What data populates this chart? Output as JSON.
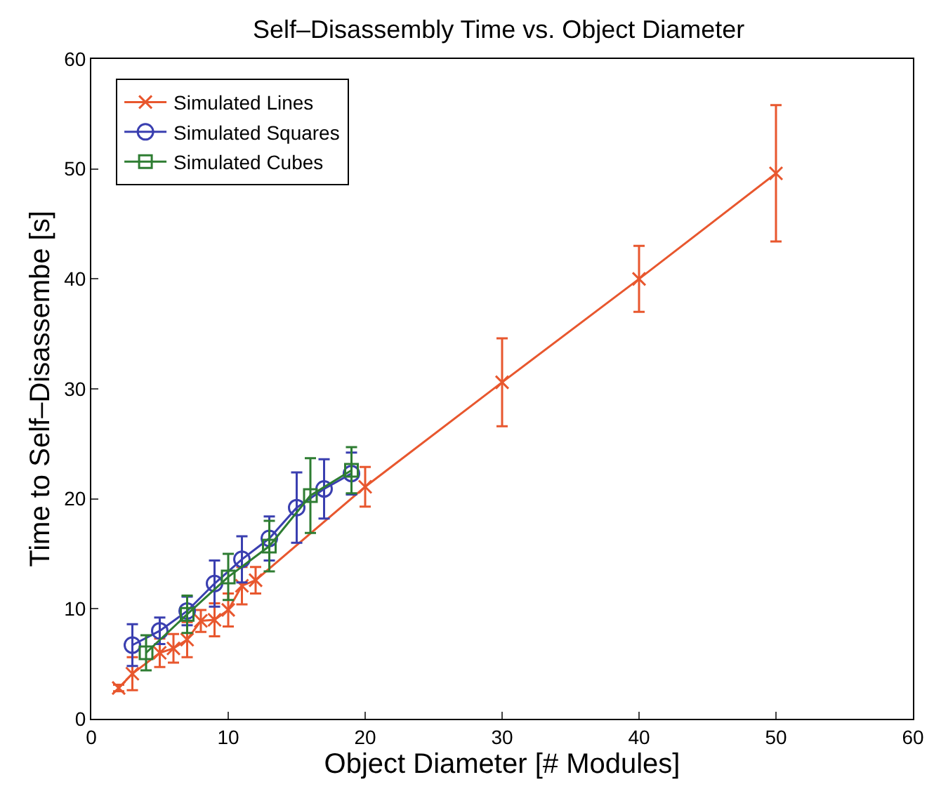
{
  "chart_data": {
    "type": "line",
    "title": "Self–Disassembly Time vs. Object Diameter",
    "xlabel": "Object Diameter [# Modules]",
    "ylabel": "Time to Self–Disassembe [s]",
    "xlim": [
      0,
      60
    ],
    "xticks": [
      0,
      10,
      20,
      30,
      40,
      50,
      60
    ],
    "ylim": [
      0,
      60
    ],
    "yticks": [
      0,
      10,
      20,
      30,
      40,
      50,
      60
    ],
    "legend": "top left",
    "series": [
      {
        "name": "Simulated Lines",
        "color": "#e8572e",
        "marker": "cross",
        "x": [
          2,
          3,
          5,
          6,
          7,
          8,
          9,
          10,
          11,
          12,
          20,
          30,
          40,
          50
        ],
        "values": [
          2.8,
          4.1,
          6.0,
          6.4,
          7.2,
          8.9,
          9.0,
          9.9,
          12.1,
          12.6,
          21.1,
          30.6,
          40.0,
          49.6
        ],
        "errors": [
          0.3,
          1.5,
          1.3,
          1.3,
          1.6,
          1.0,
          1.5,
          1.5,
          1.7,
          1.2,
          1.8,
          4.0,
          3.0,
          6.2
        ]
      },
      {
        "name": "Simulated Squares",
        "color": "#3a3fb0",
        "marker": "circle",
        "x": [
          3,
          5,
          7,
          9,
          11,
          13,
          15,
          17,
          19
        ],
        "values": [
          6.7,
          8.0,
          9.8,
          12.3,
          14.5,
          16.4,
          19.2,
          20.9,
          22.3
        ],
        "errors": [
          1.9,
          1.2,
          1.3,
          2.1,
          2.1,
          2.0,
          3.2,
          2.7,
          1.9
        ]
      },
      {
        "name": "Simulated Cubes",
        "color": "#2e7d32",
        "marker": "square",
        "x": [
          4,
          7,
          10,
          13,
          16,
          19
        ],
        "values": [
          6.0,
          9.5,
          12.9,
          15.7,
          20.3,
          22.6
        ],
        "errors": [
          1.6,
          1.7,
          2.1,
          2.3,
          3.4,
          2.1
        ]
      }
    ]
  }
}
